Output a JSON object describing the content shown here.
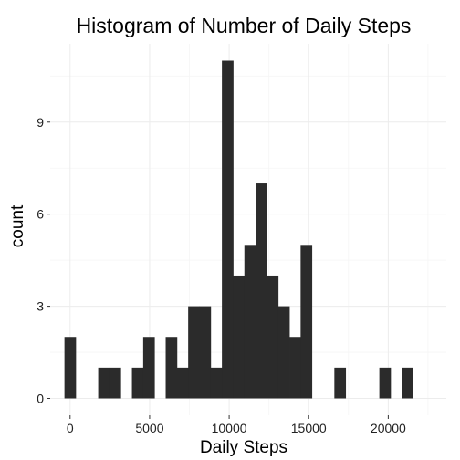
{
  "chart_data": {
    "type": "bar",
    "title": "Histogram of Number of Daily Steps",
    "xlabel": "Daily Steps",
    "ylabel": "count",
    "grid": true,
    "bin_width": 706.9,
    "bars": [
      {
        "x": 0,
        "count": 2
      },
      {
        "x": 706.9,
        "count": 0
      },
      {
        "x": 1413.8,
        "count": 0
      },
      {
        "x": 2120.7,
        "count": 1
      },
      {
        "x": 2827.6,
        "count": 1
      },
      {
        "x": 3534.5,
        "count": 0
      },
      {
        "x": 4241.4,
        "count": 1
      },
      {
        "x": 4948.3,
        "count": 2
      },
      {
        "x": 5655.2,
        "count": 0
      },
      {
        "x": 6362.1,
        "count": 2
      },
      {
        "x": 7069.0,
        "count": 1
      },
      {
        "x": 7775.9,
        "count": 3
      },
      {
        "x": 8482.8,
        "count": 3
      },
      {
        "x": 9189.7,
        "count": 1
      },
      {
        "x": 9896.6,
        "count": 11
      },
      {
        "x": 10603.4,
        "count": 4
      },
      {
        "x": 11310.3,
        "count": 5
      },
      {
        "x": 12017.2,
        "count": 7
      },
      {
        "x": 12724.1,
        "count": 4
      },
      {
        "x": 13431.0,
        "count": 3
      },
      {
        "x": 14137.9,
        "count": 2
      },
      {
        "x": 14844.8,
        "count": 5
      },
      {
        "x": 15551.7,
        "count": 0
      },
      {
        "x": 16258.6,
        "count": 0
      },
      {
        "x": 16965.5,
        "count": 1
      },
      {
        "x": 17672.4,
        "count": 0
      },
      {
        "x": 18379.3,
        "count": 0
      },
      {
        "x": 19086.2,
        "count": 0
      },
      {
        "x": 19793.1,
        "count": 1
      },
      {
        "x": 20500.0,
        "count": 0
      },
      {
        "x": 21206.9,
        "count": 1
      }
    ],
    "xlim": [
      -1250,
      23650
    ],
    "ylim": [
      -0.55,
      11.55
    ],
    "x_ticks": [
      0,
      5000,
      10000,
      15000,
      20000
    ],
    "x_tick_labels": [
      "0",
      "5000",
      "10000",
      "15000",
      "20000"
    ],
    "y_ticks": [
      0,
      3,
      6,
      9
    ],
    "y_tick_labels": [
      "0",
      "3",
      "6",
      "9"
    ],
    "colors": {
      "bar": "#2b2b2b",
      "grid_major": "#ececec",
      "grid_minor": "#f5f5f5",
      "background": "#ffffff"
    }
  }
}
